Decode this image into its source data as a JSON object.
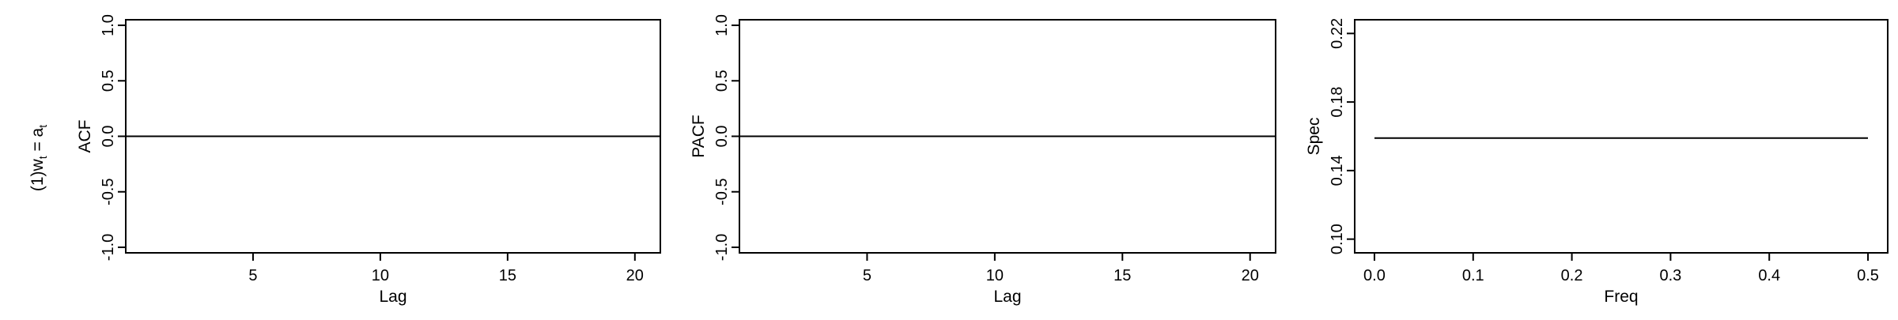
{
  "row_label": {
    "prefix": "(1)",
    "lhs": "w",
    "lhs_sub": "t",
    "eq": " = ",
    "rhs": "a",
    "rhs_sub": "t"
  },
  "chart_data": [
    {
      "type": "line",
      "title": "",
      "xlabel": "Lag",
      "ylabel": "ACF",
      "xlim": [
        0,
        21
      ],
      "ylim": [
        -1.05,
        1.05
      ],
      "xticks": [
        5,
        10,
        15,
        20
      ],
      "yticks": [
        -1.0,
        -0.5,
        0.0,
        0.5,
        1.0
      ],
      "ytick_labels": [
        "-1.0",
        "-0.5",
        "0.0",
        "0.5",
        "1.0"
      ],
      "series": [
        {
          "x": [
            0,
            21
          ],
          "y": [
            0,
            0
          ]
        }
      ],
      "grid": false
    },
    {
      "type": "line",
      "title": "",
      "xlabel": "Lag",
      "ylabel": "PACF",
      "xlim": [
        0,
        21
      ],
      "ylim": [
        -1.05,
        1.05
      ],
      "xticks": [
        5,
        10,
        15,
        20
      ],
      "yticks": [
        -1.0,
        -0.5,
        0.0,
        0.5,
        1.0
      ],
      "ytick_labels": [
        "-1.0",
        "-0.5",
        "0.0",
        "0.5",
        "1.0"
      ],
      "series": [
        {
          "x": [
            0,
            21
          ],
          "y": [
            0,
            0
          ]
        }
      ],
      "grid": false
    },
    {
      "type": "line",
      "title": "",
      "xlabel": "Freq",
      "ylabel": "Spec",
      "xlim": [
        -0.02,
        0.52
      ],
      "ylim": [
        0.092,
        0.228
      ],
      "xticks": [
        0.0,
        0.1,
        0.2,
        0.3,
        0.4,
        0.5
      ],
      "xtick_labels": [
        "0.0",
        "0.1",
        "0.2",
        "0.3",
        "0.4",
        "0.5"
      ],
      "yticks": [
        0.1,
        0.14,
        0.18,
        0.22
      ],
      "ytick_labels": [
        "0.10",
        "0.14",
        "0.18",
        "0.22"
      ],
      "series": [
        {
          "x": [
            0.0,
            0.5
          ],
          "y": [
            0.159,
            0.159
          ]
        }
      ],
      "grid": false
    }
  ]
}
